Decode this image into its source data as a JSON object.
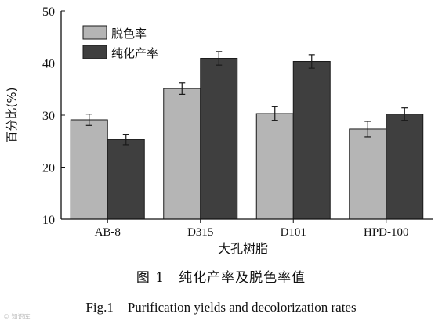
{
  "chart_data": {
    "type": "bar",
    "categories": [
      "AB-8",
      "D315",
      "D101",
      "HPD-100"
    ],
    "series": [
      {
        "name": "脱色率",
        "color": "#b5b5b5",
        "values": [
          29.1,
          35.1,
          30.3,
          27.3
        ],
        "errors": [
          1.1,
          1.1,
          1.3,
          1.5
        ]
      },
      {
        "name": "纯化产率",
        "color": "#3f3f3f",
        "values": [
          25.3,
          40.9,
          40.3,
          30.2
        ],
        "errors": [
          1.0,
          1.3,
          1.3,
          1.2
        ]
      }
    ],
    "ylim": [
      10,
      50
    ],
    "yticks": [
      10,
      20,
      30,
      40,
      50
    ],
    "xlabel": "大孔树脂",
    "ylabel": "百分比(%)",
    "legend_position": "top-left",
    "grid": false,
    "error_bars": true
  },
  "caption": {
    "cn": "图 1　纯化产率及脱色率值",
    "en_num": "Fig.1",
    "en_text": "Purification yields and decolorization rates"
  },
  "watermark": "© 知识库"
}
